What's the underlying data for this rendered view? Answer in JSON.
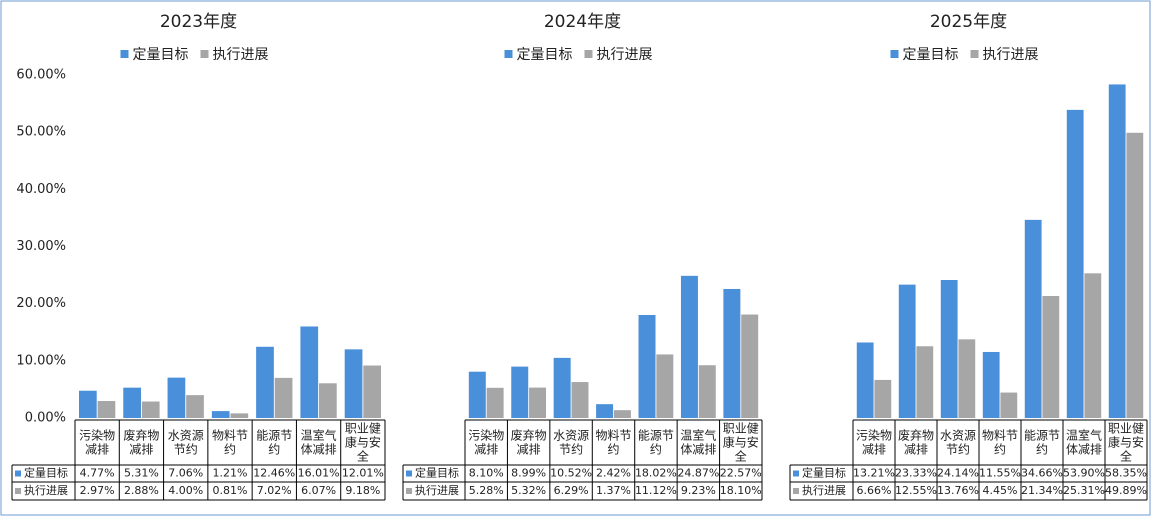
{
  "chart_data": [
    {
      "type": "bar",
      "title": "2023年度",
      "legend": "top",
      "ylim": [
        0,
        60
      ],
      "yticks": [
        {
          "value": 0,
          "label": "0.00%"
        },
        {
          "value": 10,
          "label": "10.00%"
        },
        {
          "value": 20,
          "label": "20.00%"
        },
        {
          "value": 30,
          "label": "30.00%"
        },
        {
          "value": 40,
          "label": "40.00%"
        },
        {
          "value": 50,
          "label": "50.00%"
        },
        {
          "value": 60,
          "label": "60.00%"
        }
      ],
      "categories": [
        "污染物减排",
        "废弃物减排",
        "水资源节约",
        "物料节约",
        "能源节约",
        "温室气体减排",
        "职业健康与安全"
      ],
      "series": [
        {
          "name": "定量目标",
          "color": "#4a8fd9",
          "values": [
            4.77,
            5.31,
            7.06,
            1.21,
            12.46,
            16.01,
            12.01
          ],
          "value_labels": [
            "4.77%",
            "5.31%",
            "7.06%",
            "1.21%",
            "12.46%",
            "16.01%",
            "12.01%"
          ]
        },
        {
          "name": "执行进展",
          "color": "#a6a6a6",
          "values": [
            2.97,
            2.88,
            4.0,
            0.81,
            7.02,
            6.07,
            9.18
          ],
          "value_labels": [
            "2.97%",
            "2.88%",
            "4.00%",
            "0.81%",
            "7.02%",
            "6.07%",
            "9.18%"
          ]
        }
      ]
    },
    {
      "type": "bar",
      "title": "2024年度",
      "legend": "top",
      "ylim": [
        0,
        60
      ],
      "categories": [
        "污染物减排",
        "废弃物减排",
        "水资源节约",
        "物料节约",
        "能源节约",
        "温室气体减排",
        "职业健康与安全"
      ],
      "series": [
        {
          "name": "定量目标",
          "color": "#4a8fd9",
          "values": [
            8.1,
            8.99,
            10.52,
            2.42,
            18.02,
            24.87,
            22.57
          ],
          "value_labels": [
            "8.10%",
            "8.99%",
            "10.52%",
            "2.42%",
            "18.02%",
            "24.87%",
            "22.57%"
          ]
        },
        {
          "name": "执行进展",
          "color": "#a6a6a6",
          "values": [
            5.28,
            5.32,
            6.29,
            1.37,
            11.12,
            9.23,
            18.1
          ],
          "value_labels": [
            "5.28%",
            "5.32%",
            "6.29%",
            "1.37%",
            "11.12%",
            "9.23%",
            "18.10%"
          ]
        }
      ]
    },
    {
      "type": "bar",
      "title": "2025年度",
      "legend": "top",
      "ylim": [
        0,
        60
      ],
      "categories": [
        "污染物减排",
        "废弃物减排",
        "水资源节约",
        "物料节约",
        "能源节约",
        "温室气体减排",
        "职业健康与安全"
      ],
      "series": [
        {
          "name": "定量目标",
          "color": "#4a8fd9",
          "values": [
            13.21,
            23.33,
            24.14,
            11.55,
            34.66,
            53.9,
            58.35
          ],
          "value_labels": [
            "13.21%",
            "23.33%",
            "24.14%",
            "11.55%",
            "34.66%",
            "53.90%",
            "58.35%"
          ]
        },
        {
          "name": "执行进展",
          "color": "#a6a6a6",
          "values": [
            6.66,
            12.55,
            13.76,
            4.45,
            21.34,
            25.31,
            49.89
          ],
          "value_labels": [
            "6.66%",
            "12.55%",
            "13.76%",
            "4.45%",
            "21.34%",
            "25.31%",
            "49.89%"
          ]
        }
      ]
    }
  ]
}
